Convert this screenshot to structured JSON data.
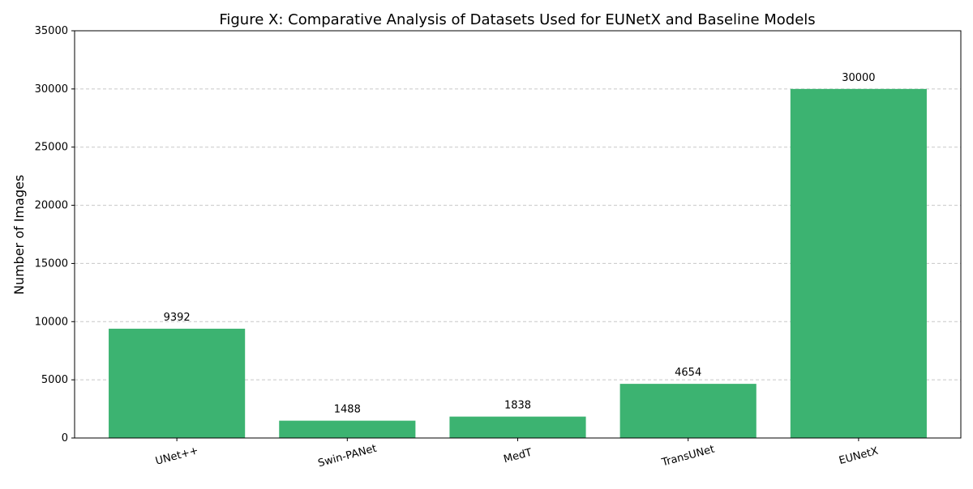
{
  "chart_data": {
    "type": "bar",
    "title": "Figure X: Comparative Analysis of Datasets Used for EUNetX and Baseline Models",
    "xlabel": "",
    "ylabel": "Number of Images",
    "categories": [
      "UNet++",
      "Swin-PANet",
      "MedT",
      "TransUNet",
      "EUNetX"
    ],
    "values": [
      9392,
      1488,
      1838,
      4654,
      30000
    ],
    "data_labels": [
      "9392",
      "1488",
      "1838",
      "4654",
      "30000"
    ],
    "ylim": [
      0,
      35000
    ],
    "yticks": [
      0,
      5000,
      10000,
      15000,
      20000,
      25000,
      30000,
      35000
    ],
    "ytick_labels": [
      "0",
      "5000",
      "10000",
      "15000",
      "20000",
      "25000",
      "30000",
      "35000"
    ],
    "grid": "y-dashed",
    "legend": "none",
    "bar_color": "#3cb371",
    "grid_color": "#c8c8c8"
  }
}
